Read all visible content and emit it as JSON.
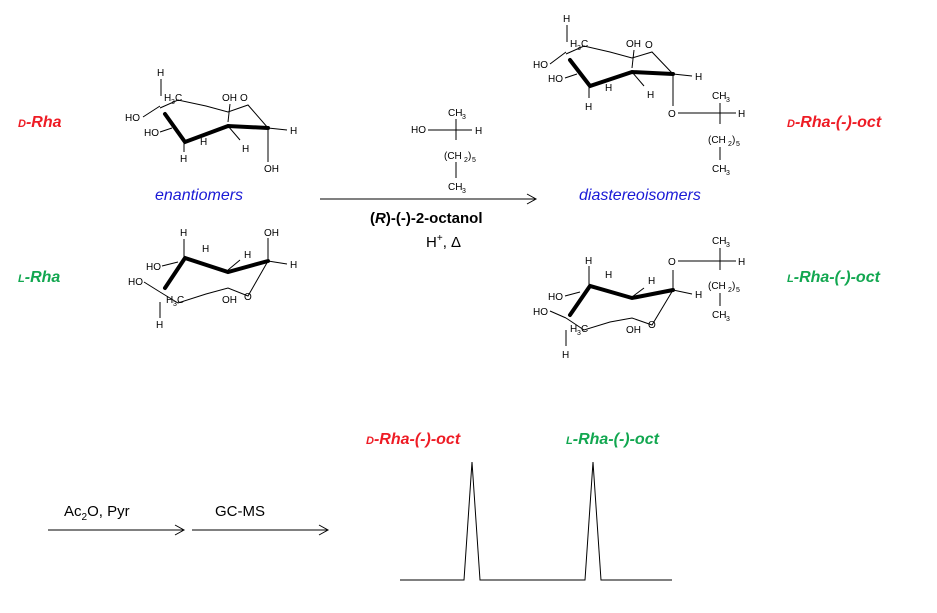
{
  "labels": {
    "d_rha": {
      "prefix": "D",
      "rest": "-Rha",
      "color": "#ee1c25"
    },
    "l_rha": {
      "prefix": "L",
      "rest": "-Rha",
      "color": "#12a750"
    },
    "d_rha_oct": {
      "prefix": "D",
      "rest": "-Rha-(-)-oct",
      "color": "#ee1c25"
    },
    "l_rha_oct": {
      "prefix": "L",
      "rest": "-Rha-(-)-oct",
      "color": "#12a750"
    },
    "peak_d": {
      "prefix": "D",
      "rest": "-Rha-(-)-oct",
      "color": "#ee1c25"
    },
    "peak_l": {
      "prefix": "L",
      "rest": "-Rha-(-)-oct",
      "color": "#12a750"
    }
  },
  "headings": {
    "enantiomers": "enantiomers",
    "diastereoisomers": "diastereoisomers"
  },
  "reaction": {
    "reagent_italic": "R",
    "reagent_rest": "-(-)-2-octanol",
    "conditions_h": "H",
    "conditions_sup": "+",
    "conditions_delta": ", Δ"
  },
  "steps": {
    "acetylation_ac": "Ac",
    "acetylation_sub": "2",
    "acetylation_rest": "O, Pyr",
    "analysis": "GC-MS"
  },
  "atoms": {
    "H": "H",
    "HO": "HO",
    "OH": "OH",
    "O": "O",
    "CH3": "CH",
    "three": "3",
    "H3C": "H",
    "H3C_sub": "3",
    "H3C_rest": "C",
    "CH2": "(CH",
    "two": "2",
    "paren": ")",
    "five": "5"
  },
  "colors": {
    "accent_red": "#ee1c25",
    "accent_green": "#12a750",
    "heading_blue": "#1a1ad6"
  }
}
